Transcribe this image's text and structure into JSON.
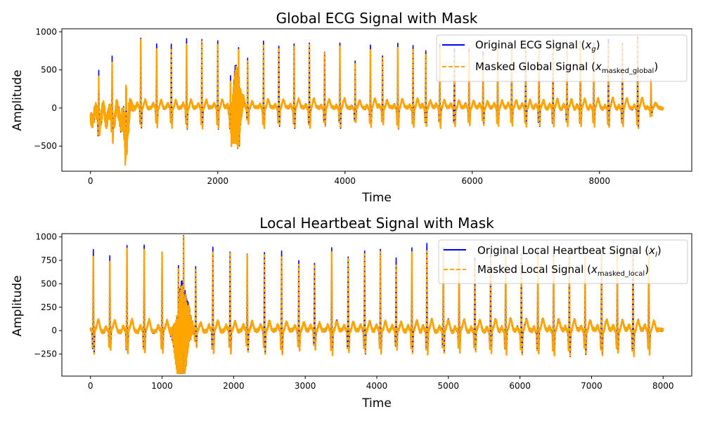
{
  "chart_data": [
    {
      "type": "line",
      "title": "Global ECG Signal with Mask",
      "xlabel": "Time",
      "ylabel": "Amplitude",
      "xlim": [
        -450,
        9450
      ],
      "ylim": [
        -830,
        1040
      ],
      "xticks": [
        0,
        2000,
        4000,
        6000,
        8000
      ],
      "xtick_labels": [
        "0",
        "2000",
        "4000",
        "6000",
        "8000"
      ],
      "yticks": [
        -500,
        0,
        500,
        1000
      ],
      "ytick_labels": [
        "−500",
        "0",
        "500",
        "1000"
      ],
      "legend_position": "upper right",
      "length": 9000,
      "beats_x": [
        130,
        340,
        560,
        790,
        1040,
        1270,
        1510,
        1750,
        2000,
        2200,
        2330,
        2470,
        2720,
        2960,
        3200,
        3440,
        3680,
        3920,
        4160,
        4400,
        4590,
        4830,
        5070,
        5270,
        5490,
        5720,
        5950,
        6170,
        6400,
        6620,
        6840,
        7050,
        7270,
        7490,
        7700,
        7910,
        8140,
        8360,
        8600,
        8810
      ],
      "beats_peak": [
        590,
        870,
        740,
        930,
        880,
        880,
        930,
        910,
        920,
        460,
        610,
        690,
        900,
        860,
        890,
        890,
        780,
        870,
        660,
        860,
        730,
        890,
        860,
        800,
        860,
        810,
        800,
        770,
        850,
        870,
        890,
        870,
        940,
        860,
        880,
        870,
        930,
        880,
        960,
        380
      ],
      "series": [
        {
          "name": "Original ECG Signal ($x_g$)",
          "legend_main": "Original ECG Signal (",
          "legend_var": "x",
          "legend_sub": "g",
          "legend_close": ")",
          "color": "#0000ff",
          "style": "solid"
        },
        {
          "name": "Masked Global Signal ($x_{masked\\_global}$)",
          "legend_main": "Masked Global Signal (",
          "legend_var": "x",
          "legend_sub": "masked_global",
          "legend_close": ")",
          "color": "#ffa500",
          "style": "dashed"
        }
      ]
    },
    {
      "type": "line",
      "title": "Local Heartbeat Signal with Mask",
      "xlabel": "Time",
      "ylabel": "Amplitude",
      "xlim": [
        -400,
        8400
      ],
      "ylim": [
        -485,
        1035
      ],
      "xticks": [
        0,
        1000,
        2000,
        3000,
        4000,
        5000,
        6000,
        7000,
        8000
      ],
      "xtick_labels": [
        "0",
        "1000",
        "2000",
        "3000",
        "4000",
        "5000",
        "6000",
        "7000",
        "8000"
      ],
      "yticks": [
        -250,
        0,
        250,
        500,
        750,
        1000
      ],
      "ytick_labels": [
        "−250",
        "0",
        "250",
        "500",
        "750",
        "1000"
      ],
      "legend_position": "upper right",
      "length": 8000,
      "beats_x": [
        40,
        270,
        510,
        750,
        1000,
        1230,
        1300,
        1470,
        1710,
        1950,
        2190,
        2430,
        2670,
        2910,
        3130,
        3370,
        3600,
        3830,
        4050,
        4270,
        4490,
        4700,
        4930,
        5150,
        5370,
        5590,
        5800,
        6020,
        6250,
        6470,
        6690,
        6910,
        7140,
        7360,
        7580,
        7800
      ],
      "beats_peak": [
        880,
        800,
        930,
        930,
        870,
        470,
        630,
        690,
        910,
        860,
        850,
        870,
        870,
        770,
        740,
        900,
        810,
        860,
        870,
        780,
        880,
        950,
        890,
        880,
        800,
        850,
        900,
        860,
        900,
        880,
        900,
        820,
        900,
        880,
        920,
        880
      ],
      "series": [
        {
          "name": "Original Local Heartbeat Signal ($x_l$)",
          "legend_main": "Original Local Heartbeat Signal (",
          "legend_var": "x",
          "legend_sub": "l",
          "legend_close": ")",
          "color": "#0000ff",
          "style": "solid"
        },
        {
          "name": "Masked Local Signal ($x_{masked\\_local}$)",
          "legend_main": "Masked Local Signal (",
          "legend_var": "x",
          "legend_sub": "masked_local",
          "legend_close": ")",
          "color": "#ffa500",
          "style": "dashed"
        }
      ]
    }
  ]
}
